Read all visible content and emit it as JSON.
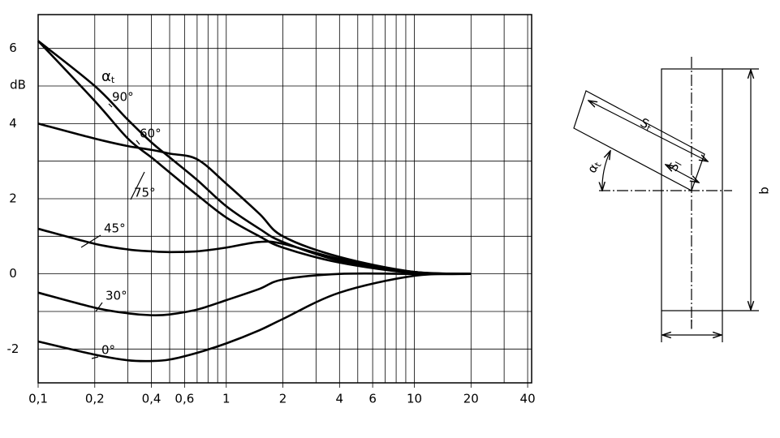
{
  "chart_data": {
    "type": "line",
    "y_unit": "dB",
    "curve_group_label": {
      "symbol": "α",
      "sub": "t"
    },
    "log_x": true,
    "grid": true,
    "x": [
      0.1,
      0.2,
      0.3,
      0.4,
      0.5,
      0.7,
      1,
      1.5,
      2,
      4,
      10,
      20
    ],
    "xlim": [
      0.1,
      42
    ],
    "ylim": [
      -2.9,
      6.9
    ],
    "xticks": [
      {
        "value": 0.1,
        "label": "0,1"
      },
      {
        "value": 0.2,
        "label": "0,2"
      },
      {
        "value": 0.4,
        "label": "0,4"
      },
      {
        "value": 0.6,
        "label": "0,6"
      },
      1,
      2,
      4,
      6,
      10,
      20,
      40
    ],
    "x_minor_grid": [
      0.3,
      0.5,
      0.7,
      0.8,
      0.9,
      3,
      5,
      7,
      8,
      9,
      30
    ],
    "yticks": [
      {
        "value": -2,
        "label": "-2"
      },
      0,
      2,
      4,
      6
    ],
    "y_minor_grid": [
      -1,
      1,
      3,
      5
    ],
    "series": [
      {
        "name": "0°",
        "color": "#000000",
        "values": [
          -1.8,
          -2.15,
          -2.3,
          -2.32,
          -2.28,
          -2.1,
          -1.85,
          -1.5,
          -1.2,
          -0.5,
          -0.05,
          0
        ]
      },
      {
        "name": "30°",
        "color": "#000000",
        "values": [
          -0.5,
          -0.9,
          -1.05,
          -1.1,
          -1.08,
          -0.95,
          -0.7,
          -0.4,
          -0.15,
          0,
          0,
          0
        ]
      },
      {
        "name": "45°",
        "color": "#000000",
        "values": [
          1.2,
          0.8,
          0.65,
          0.6,
          0.58,
          0.6,
          0.7,
          0.85,
          0.8,
          0.4,
          0.05,
          0
        ]
      },
      {
        "name": "60°",
        "color": "#000000",
        "values": [
          4,
          3.6,
          3.4,
          3.3,
          3.2,
          3.05,
          2.4,
          1.6,
          1.0,
          0.45,
          0.05,
          0
        ]
      },
      {
        "name": "75°",
        "color": "#000000",
        "values": [
          6.2,
          4.6,
          3.6,
          3.1,
          2.7,
          2.1,
          1.5,
          1.0,
          0.7,
          0.3,
          0.02,
          0
        ]
      },
      {
        "name": "90°",
        "color": "#000000",
        "values": [
          6.2,
          5.0,
          4.1,
          3.5,
          3.1,
          2.5,
          1.8,
          1.2,
          0.85,
          0.35,
          0.05,
          0
        ]
      }
    ]
  },
  "diagram": {
    "s_t": {
      "symbol": "S",
      "sub": "t"
    },
    "s_l": {
      "symbol": "S",
      "sub": "l"
    },
    "alpha_t": {
      "symbol": "α",
      "sub": "t"
    },
    "b": "b",
    "l": "l"
  }
}
